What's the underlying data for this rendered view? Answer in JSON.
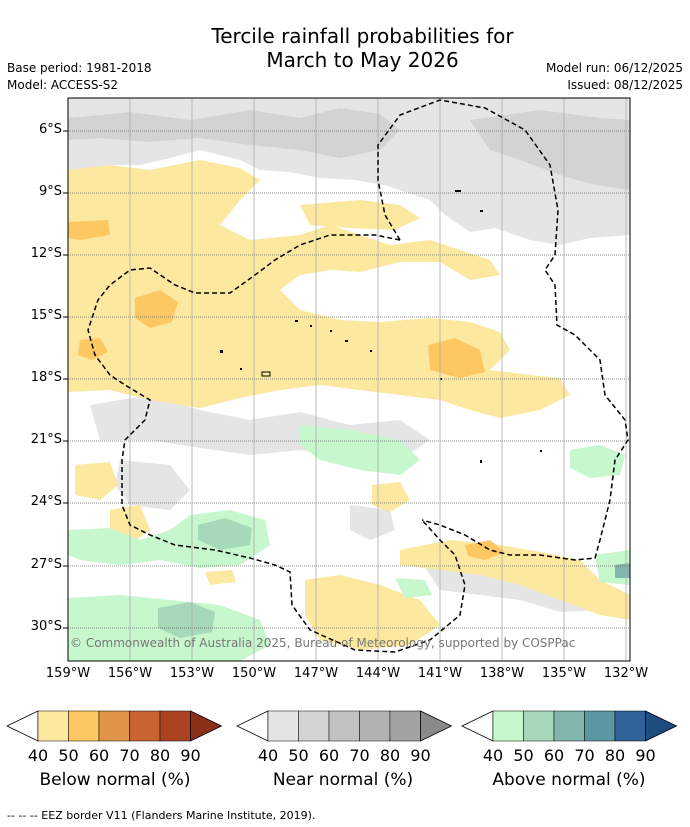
{
  "title_line1": "Tercile rainfall probabilities for",
  "title_line2": "March to May 2026",
  "base_period": "Base period: 1981-2018",
  "model": "Model: ACCESS-S2",
  "model_run": "Model run: 06/12/2025",
  "issued": "Issued: 08/12/2025",
  "lat_labels": [
    "6°S",
    "9°S",
    "12°S",
    "15°S",
    "18°S",
    "21°S",
    "24°S",
    "27°S",
    "30°S"
  ],
  "lon_labels": [
    "159°W",
    "156°W",
    "153°W",
    "150°W",
    "147°W",
    "144°W",
    "141°W",
    "138°W",
    "135°W",
    "132°W"
  ],
  "copyright": "© Commonwealth of Australia 2025, Bureau of Meteorology, supported by COSPPac",
  "legend": [
    {
      "label": "Below normal (%)",
      "ticks": [
        "40",
        "50",
        "60",
        "70",
        "80",
        "90"
      ],
      "colors": [
        "#fde8a0",
        "#fdc762",
        "#e09548",
        "#ca6332",
        "#ab4323",
        "#8c2f19"
      ]
    },
    {
      "label": "Near normal (%)",
      "ticks": [
        "40",
        "50",
        "60",
        "70",
        "80",
        "90"
      ],
      "colors": [
        "#e5e5e5",
        "#d3d3d3",
        "#c2c2c2",
        "#b2b2b2",
        "#a3a3a3",
        "#8a8a8a"
      ]
    },
    {
      "label": "Above normal (%)",
      "ticks": [
        "40",
        "50",
        "60",
        "70",
        "80",
        "90"
      ],
      "colors": [
        "#c6f7cd",
        "#a6d8ba",
        "#80b6ae",
        "#5b96a2",
        "#2f6299",
        "#1c4c80"
      ]
    }
  ],
  "footer": "--  --  -- EEZ border V11 (Flanders Marine Institute, 2019)."
}
